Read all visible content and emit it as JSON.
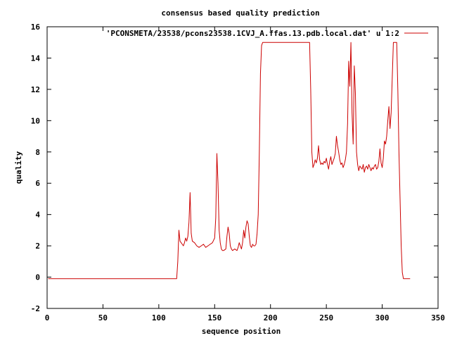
{
  "chart_data": {
    "type": "line",
    "title": "consensus based quality prediction",
    "xlabel": "sequence position",
    "ylabel": "quality",
    "xlim": [
      0,
      350
    ],
    "ylim": [
      -2,
      16
    ],
    "xticks": [
      0,
      50,
      100,
      150,
      200,
      250,
      300,
      350
    ],
    "yticks": [
      -2,
      0,
      2,
      4,
      6,
      8,
      10,
      12,
      14,
      16
    ],
    "legend_position": "top-right",
    "grid": false,
    "series": [
      {
        "name": "'PCONSMETA/23538/pcons23538.1CVJ_A.ffas.13.pdb.local.dat' u 1:2",
        "color": "#cc0000",
        "x": [
          1,
          116,
          117,
          118,
          119,
          120,
          121,
          122,
          123,
          124,
          125,
          126,
          127,
          128,
          129,
          130,
          132,
          134,
          136,
          138,
          140,
          142,
          144,
          146,
          148,
          150,
          151,
          152,
          153,
          154,
          155,
          156,
          157,
          158,
          160,
          161,
          162,
          163,
          164,
          165,
          166,
          168,
          170,
          171,
          172,
          173,
          174,
          175,
          176,
          177,
          178,
          179,
          180,
          181,
          182,
          183,
          184,
          185,
          186,
          187,
          188,
          189,
          190,
          191,
          192,
          193,
          194,
          195,
          200,
          210,
          220,
          230,
          235,
          236,
          237,
          238,
          239,
          240,
          241,
          242,
          243,
          244,
          245,
          246,
          247,
          248,
          249,
          250,
          251,
          252,
          253,
          254,
          255,
          256,
          257,
          258,
          259,
          260,
          261,
          262,
          263,
          264,
          265,
          266,
          267,
          268,
          269,
          270,
          271,
          272,
          273,
          274,
          275,
          276,
          277,
          278,
          279,
          280,
          281,
          282,
          283,
          284,
          285,
          286,
          287,
          288,
          289,
          290,
          291,
          292,
          293,
          294,
          295,
          296,
          297,
          298,
          299,
          300,
          301,
          302,
          303,
          304,
          305,
          306,
          307,
          308,
          310,
          312,
          313,
          314,
          315,
          316,
          317,
          318,
          319,
          320,
          325
        ],
        "y": [
          -0.1,
          -0.1,
          1.0,
          3.0,
          2.3,
          2.2,
          2.1,
          2.0,
          2.2,
          2.5,
          2.3,
          2.6,
          3.5,
          5.4,
          2.8,
          2.3,
          2.2,
          2.0,
          1.9,
          2.0,
          2.1,
          1.9,
          2.0,
          2.1,
          2.2,
          2.5,
          3.8,
          7.9,
          6.0,
          3.0,
          2.2,
          1.8,
          1.7,
          1.7,
          1.8,
          2.6,
          3.2,
          2.8,
          2.0,
          1.8,
          1.7,
          1.8,
          1.7,
          1.9,
          2.2,
          2.0,
          1.8,
          2.2,
          3.0,
          2.5,
          3.2,
          3.6,
          3.4,
          2.6,
          2.0,
          1.9,
          2.1,
          2.0,
          2.0,
          2.1,
          2.8,
          4.0,
          8.0,
          13.0,
          14.8,
          15.0,
          15.0,
          15.0,
          15.0,
          15.0,
          15.0,
          15.0,
          15.0,
          12.0,
          8.0,
          7.0,
          7.2,
          7.5,
          7.3,
          7.6,
          8.4,
          7.5,
          7.2,
          7.3,
          7.2,
          7.4,
          7.3,
          7.6,
          7.2,
          6.9,
          7.4,
          7.7,
          7.2,
          7.4,
          7.6,
          7.9,
          9.0,
          8.4,
          8.0,
          7.5,
          7.2,
          7.3,
          7.0,
          7.2,
          7.5,
          8.0,
          9.8,
          13.8,
          12.2,
          15.0,
          10.5,
          8.5,
          13.5,
          11.8,
          8.0,
          7.2,
          6.8,
          7.1,
          7.0,
          6.9,
          7.2,
          6.7,
          7.0,
          7.1,
          6.9,
          7.2,
          7.0,
          6.8,
          7.0,
          6.9,
          7.1,
          7.2,
          6.9,
          7.0,
          7.4,
          8.2,
          7.3,
          7.0,
          7.6,
          8.7,
          8.5,
          9.0,
          10.0,
          10.9,
          9.5,
          10.5,
          15.0,
          15.0,
          15.0,
          12.0,
          8.0,
          5.0,
          2.0,
          0.3,
          -0.1,
          -0.1,
          -0.1
        ]
      }
    ]
  }
}
